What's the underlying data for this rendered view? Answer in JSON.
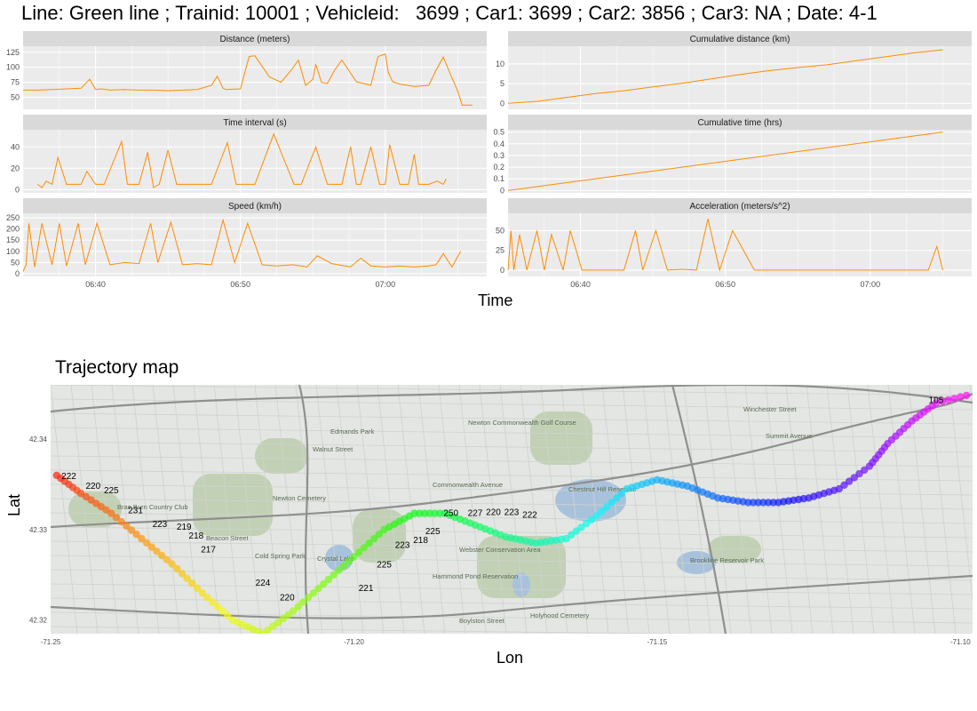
{
  "header": {
    "title": "Line: Green line ; Trainid: 10001 ; Vehicleid:   3699 ; Car1: 3699 ; Car2: 3856 ; Car3: NA ; Date: 4-1"
  },
  "time_axis": {
    "label": "Time",
    "ticks": [
      "06:40",
      "06:50",
      "07:00"
    ]
  },
  "colors": {
    "line": "#ff8c00",
    "panel_bg": "#ebebeb",
    "strip_bg": "#d9d9d9",
    "map_road": "#8f8f8f",
    "map_land": "#e3e6e2",
    "map_park": "#b7c9a6",
    "map_water": "#a9c2dc"
  },
  "chart_data": [
    {
      "type": "line",
      "title": "Distance (meters)",
      "x_unit": "minutes",
      "x_range": [
        "06:35",
        "07:07"
      ],
      "yticks": [
        50,
        75,
        100,
        125
      ],
      "ylim": [
        30,
        135
      ],
      "grid": true,
      "series": [
        {
          "x": [
            0,
            1,
            2,
            3,
            4,
            4.6,
            5,
            5.4,
            6,
            7,
            8,
            9,
            10,
            11,
            12,
            13,
            13.4,
            13.8,
            14,
            15,
            15.6,
            16,
            17,
            17.8,
            18.5,
            19,
            19.5,
            20,
            20.2,
            20.6,
            21,
            21.5,
            22,
            23,
            24,
            24.5,
            25,
            25.2,
            25.5,
            26,
            27,
            28,
            28.5,
            29,
            29.5,
            30,
            30.3,
            31
          ],
          "values": [
            62,
            62,
            63,
            64,
            65,
            80,
            63,
            64,
            62,
            63,
            62,
            62,
            61,
            62,
            63,
            70,
            85,
            65,
            63,
            64,
            118,
            119,
            84,
            75,
            95,
            112,
            70,
            80,
            105,
            75,
            73,
            95,
            112,
            76,
            70,
            118,
            122,
            92,
            76,
            72,
            68,
            70,
            95,
            117,
            88,
            60,
            37,
            37
          ]
        }
      ]
    },
    {
      "type": "line",
      "title": "Time interval (s)",
      "x_unit": "minutes",
      "x_range": [
        "06:35",
        "07:07"
      ],
      "yticks": [
        0,
        20,
        40
      ],
      "ylim": [
        -3,
        56
      ],
      "grid": true,
      "series": [
        {
          "x": [
            1,
            1.3,
            1.6,
            2,
            2.4,
            3,
            3.4,
            4,
            4.4,
            5,
            5.6,
            6.8,
            7.2,
            8,
            8.6,
            9,
            9.4,
            10,
            10.6,
            12,
            13,
            14.1,
            14.7,
            16,
            17.3,
            18.7,
            19.2,
            20.2,
            21,
            22,
            22.6,
            23,
            23.3,
            24,
            24.6,
            25,
            25.3,
            26,
            26.6,
            27,
            27.3,
            28,
            28.6,
            29,
            29.2
          ],
          "values": [
            5,
            2,
            8,
            5,
            30,
            5,
            5,
            5,
            17,
            5,
            5,
            45,
            5,
            5,
            35,
            2,
            5,
            37,
            5,
            5,
            5,
            44,
            5,
            5,
            52,
            5,
            5,
            40,
            5,
            5,
            40,
            5,
            5,
            40,
            5,
            5,
            42,
            5,
            5,
            33,
            5,
            5,
            8,
            5,
            10
          ]
        }
      ]
    },
    {
      "type": "line",
      "title": "Speed (km/h)",
      "x_unit": "minutes",
      "x_range": [
        "06:35",
        "07:07"
      ],
      "yticks": [
        0,
        50,
        100,
        150,
        200,
        250
      ],
      "ylim": [
        -12,
        270
      ],
      "grid": true,
      "series": [
        {
          "x": [
            0,
            0.2,
            0.4,
            0.8,
            1.3,
            2,
            2.5,
            3,
            3.8,
            4.3,
            5.1,
            6,
            7,
            8,
            8.8,
            9.3,
            10.2,
            11,
            12,
            13,
            13.8,
            14.6,
            15.5,
            16.5,
            17.5,
            18.6,
            19.6,
            20.3,
            21.3,
            22.6,
            23.3,
            24,
            25,
            26,
            27,
            28,
            28.5,
            29,
            29.6,
            30.2
          ],
          "values": [
            10,
            40,
            225,
            30,
            225,
            40,
            225,
            35,
            225,
            40,
            225,
            40,
            50,
            45,
            225,
            50,
            230,
            40,
            45,
            40,
            240,
            50,
            225,
            40,
            35,
            40,
            30,
            80,
            45,
            30,
            70,
            35,
            30,
            35,
            30,
            35,
            40,
            90,
            30,
            100
          ]
        }
      ]
    },
    {
      "type": "line",
      "title": "Cumulative distance (km)",
      "x_unit": "minutes",
      "x_range": [
        "06:35",
        "07:07"
      ],
      "yticks": [
        0,
        5,
        10
      ],
      "ylim": [
        -1.5,
        14.5
      ],
      "grid": true,
      "series": [
        {
          "x": [
            0,
            2,
            4,
            6,
            8,
            10,
            12,
            14,
            16,
            18,
            20,
            22,
            24,
            26,
            28,
            30
          ],
          "values": [
            0,
            0.5,
            1.5,
            2.5,
            3.2,
            4.2,
            5.1,
            6.2,
            7.3,
            8.3,
            9.1,
            9.8,
            10.8,
            11.8,
            12.8,
            13.6
          ]
        }
      ]
    },
    {
      "type": "line",
      "title": "Cumulative time (hrs)",
      "x_unit": "minutes",
      "x_range": [
        "06:35",
        "07:07"
      ],
      "yticks": [
        0.0,
        0.1,
        0.2,
        0.3,
        0.4,
        0.5
      ],
      "ylim": [
        -0.02,
        0.52
      ],
      "grid": true,
      "series": [
        {
          "x": [
            0,
            30
          ],
          "values": [
            0,
            0.5
          ]
        }
      ]
    },
    {
      "type": "line",
      "title": "Acceleration (meters/s^2)",
      "x_unit": "minutes",
      "x_range": [
        "06:35",
        "07:07"
      ],
      "yticks": [
        0,
        25,
        50
      ],
      "ylim": [
        -8,
        72
      ],
      "grid": true,
      "series": [
        {
          "x": [
            0,
            0.2,
            0.4,
            0.8,
            1.3,
            2,
            2.5,
            3,
            3.8,
            4.3,
            5.1,
            6,
            7,
            8,
            8.8,
            9.3,
            10.2,
            11,
            12,
            13,
            13.8,
            14.6,
            15.5,
            17,
            20,
            25,
            29,
            29.6,
            30
          ],
          "values": [
            0,
            50,
            0,
            45,
            0,
            50,
            0,
            45,
            0,
            50,
            0,
            0,
            0,
            0,
            50,
            0,
            50,
            0,
            1,
            0,
            65,
            0,
            50,
            0,
            0,
            0,
            0,
            30,
            0
          ]
        }
      ]
    },
    {
      "type": "scatter",
      "title": "Trajectory map",
      "xlabel": "Lon",
      "ylabel": "Lat",
      "xticks": [
        "-71.25",
        "-71.20",
        "-71.15",
        "-71.10"
      ],
      "yticks": [
        "42.32",
        "42.33",
        "42.34"
      ],
      "xlim": [
        -71.25,
        -71.098
      ],
      "ylim": [
        42.3185,
        42.346
      ],
      "grid": false,
      "series": [
        {
          "name": "path",
          "points": [
            {
              "lon": -71.249,
              "lat": 42.336
            },
            {
              "lon": -71.245,
              "lat": 42.334
            },
            {
              "lon": -71.24,
              "lat": 42.3318
            },
            {
              "lon": -71.235,
              "lat": 42.329
            },
            {
              "lon": -71.23,
              "lat": 42.3262
            },
            {
              "lon": -71.225,
              "lat": 42.323
            },
            {
              "lon": -71.22,
              "lat": 42.32
            },
            {
              "lon": -71.215,
              "lat": 42.3185
            },
            {
              "lon": -71.21,
              "lat": 42.321
            },
            {
              "lon": -71.205,
              "lat": 42.324
            },
            {
              "lon": -71.2,
              "lat": 42.327
            },
            {
              "lon": -71.195,
              "lat": 42.33
            },
            {
              "lon": -71.19,
              "lat": 42.3318
            },
            {
              "lon": -71.185,
              "lat": 42.3318
            },
            {
              "lon": -71.18,
              "lat": 42.3305
            },
            {
              "lon": -71.175,
              "lat": 42.3292
            },
            {
              "lon": -71.17,
              "lat": 42.3285
            },
            {
              "lon": -71.165,
              "lat": 42.329
            },
            {
              "lon": -71.16,
              "lat": 42.3315
            },
            {
              "lon": -71.155,
              "lat": 42.3345
            },
            {
              "lon": -71.15,
              "lat": 42.3355
            },
            {
              "lon": -71.145,
              "lat": 42.3348
            },
            {
              "lon": -71.14,
              "lat": 42.3335
            },
            {
              "lon": -71.135,
              "lat": 42.333
            },
            {
              "lon": -71.13,
              "lat": 42.333
            },
            {
              "lon": -71.125,
              "lat": 42.3335
            },
            {
              "lon": -71.12,
              "lat": 42.3345
            },
            {
              "lon": -71.115,
              "lat": 42.337
            },
            {
              "lon": -71.112,
              "lat": 42.3395
            },
            {
              "lon": -71.108,
              "lat": 42.342
            },
            {
              "lon": -71.104,
              "lat": 42.344
            },
            {
              "lon": -71.098,
              "lat": 42.345
            }
          ]
        }
      ],
      "labels": [
        {
          "text": "222",
          "lon": -71.247,
          "lat": 42.3356
        },
        {
          "text": "220",
          "lon": -71.243,
          "lat": 42.3345
        },
        {
          "text": "225",
          "lon": -71.24,
          "lat": 42.334
        },
        {
          "text": "231",
          "lon": -71.236,
          "lat": 42.3318
        },
        {
          "text": "223",
          "lon": -71.232,
          "lat": 42.3303
        },
        {
          "text": "219",
          "lon": -71.228,
          "lat": 42.33
        },
        {
          "text": "218",
          "lon": -71.226,
          "lat": 42.329
        },
        {
          "text": "217",
          "lon": -71.224,
          "lat": 42.3275
        },
        {
          "text": "224",
          "lon": -71.215,
          "lat": 42.3238
        },
        {
          "text": "220",
          "lon": -71.211,
          "lat": 42.3222
        },
        {
          "text": "221",
          "lon": -71.198,
          "lat": 42.3232
        },
        {
          "text": "225",
          "lon": -71.195,
          "lat": 42.3258
        },
        {
          "text": "223",
          "lon": -71.192,
          "lat": 42.328
        },
        {
          "text": "218",
          "lon": -71.189,
          "lat": 42.3285
        },
        {
          "text": "225",
          "lon": -71.187,
          "lat": 42.3295
        },
        {
          "text": "250",
          "lon": -71.184,
          "lat": 42.3315
        },
        {
          "text": "227",
          "lon": -71.18,
          "lat": 42.3315
        },
        {
          "text": "220",
          "lon": -71.177,
          "lat": 42.3316
        },
        {
          "text": "223",
          "lon": -71.174,
          "lat": 42.3316
        },
        {
          "text": "222",
          "lon": -71.171,
          "lat": 42.3313
        },
        {
          "text": "105",
          "lon": -71.104,
          "lat": 42.344
        }
      ],
      "street_labels": [
        "Beacon Street",
        "Commonwealth Avenue",
        "Boylston Street",
        "Walnut Street",
        "Newton Cemetery",
        "Chestnut Hill Reservoir",
        "Brae Burn Country Club",
        "Cold Spring Park",
        "Edmands Park",
        "Webster Conservation Area",
        "Hammond Pond Reservation",
        "Brookline Reservoir Park",
        "Holyhood Cemetery",
        "Newton Commonwealth Golf Course",
        "Crystal Lake",
        "Winchester Street",
        "Summit Avenue"
      ]
    }
  ]
}
